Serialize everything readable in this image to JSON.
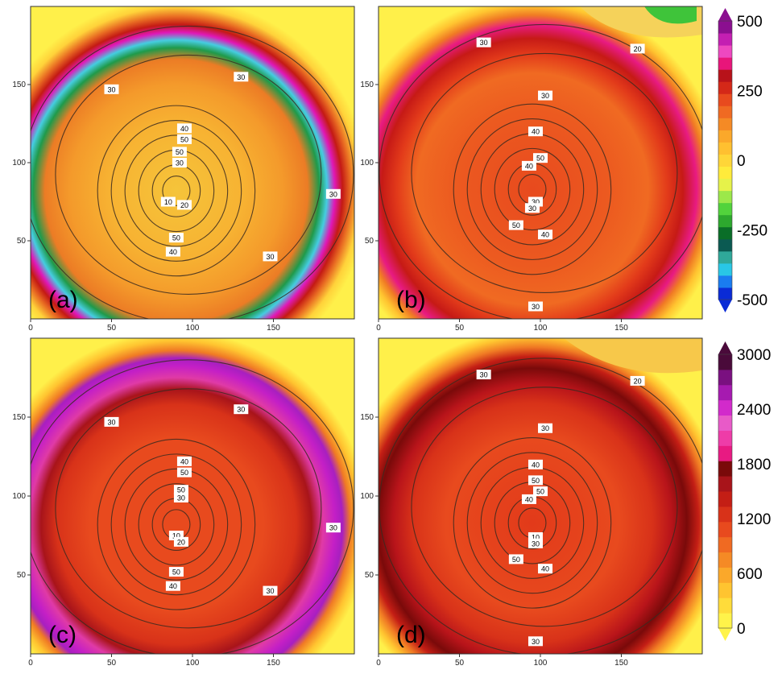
{
  "chart_data": [
    {
      "type": "heatmap",
      "panel_label": "(a)",
      "x_ticks": [
        "0",
        "50",
        "100",
        "150"
      ],
      "y_ticks": [
        "50",
        "100",
        "150"
      ],
      "xlim": [
        0,
        200
      ],
      "ylim": [
        0,
        200
      ],
      "center": [
        90,
        82
      ],
      "field": "diverging",
      "contours": [
        {
          "label": "10",
          "x": 85,
          "y": 75
        },
        {
          "label": "20",
          "x": 95,
          "y": 73
        },
        {
          "label": "30",
          "x": 130,
          "y": 155
        },
        {
          "label": "30",
          "x": 50,
          "y": 147
        },
        {
          "label": "30",
          "x": 187,
          "y": 80
        },
        {
          "label": "30",
          "x": 148,
          "y": 40
        },
        {
          "label": "30",
          "x": 92,
          "y": 100
        },
        {
          "label": "40",
          "x": 95,
          "y": 122
        },
        {
          "label": "40",
          "x": 88,
          "y": 43
        },
        {
          "label": "50",
          "x": 95,
          "y": 115
        },
        {
          "label": "50",
          "x": 92,
          "y": 107
        },
        {
          "label": "50",
          "x": 90,
          "y": 52
        }
      ]
    },
    {
      "type": "heatmap",
      "panel_label": "(b)",
      "x_ticks": [
        "0",
        "50",
        "100",
        "150"
      ],
      "y_ticks": [
        "50",
        "100",
        "150"
      ],
      "xlim": [
        0,
        200
      ],
      "ylim": [
        0,
        200
      ],
      "center": [
        95,
        83
      ],
      "field": "warm",
      "contours": [
        {
          "label": "30",
          "x": 65,
          "y": 177
        },
        {
          "label": "20",
          "x": 160,
          "y": 173
        },
        {
          "label": "30",
          "x": 103,
          "y": 143
        },
        {
          "label": "40",
          "x": 97,
          "y": 120
        },
        {
          "label": "50",
          "x": 100,
          "y": 103
        },
        {
          "label": "40",
          "x": 93,
          "y": 98
        },
        {
          "label": "30",
          "x": 97,
          "y": 75
        },
        {
          "label": "30",
          "x": 95,
          "y": 71
        },
        {
          "label": "50",
          "x": 85,
          "y": 60
        },
        {
          "label": "40",
          "x": 103,
          "y": 54
        },
        {
          "label": "30",
          "x": 97,
          "y": 8
        }
      ]
    },
    {
      "type": "heatmap",
      "panel_label": "(c)",
      "x_ticks": [
        "0",
        "50",
        "100",
        "150"
      ],
      "y_ticks": [
        "50",
        "100",
        "150"
      ],
      "xlim": [
        0,
        200
      ],
      "ylim": [
        0,
        200
      ],
      "center": [
        90,
        82
      ],
      "field": "sequential",
      "contours": [
        {
          "label": "30",
          "x": 130,
          "y": 155
        },
        {
          "label": "30",
          "x": 50,
          "y": 147
        },
        {
          "label": "40",
          "x": 95,
          "y": 122
        },
        {
          "label": "50",
          "x": 95,
          "y": 115
        },
        {
          "label": "50",
          "x": 93,
          "y": 104
        },
        {
          "label": "30",
          "x": 93,
          "y": 99
        },
        {
          "label": "10",
          "x": 90,
          "y": 75
        },
        {
          "label": "20",
          "x": 93,
          "y": 71
        },
        {
          "label": "30",
          "x": 187,
          "y": 80
        },
        {
          "label": "30",
          "x": 148,
          "y": 40
        },
        {
          "label": "50",
          "x": 90,
          "y": 52
        },
        {
          "label": "40",
          "x": 88,
          "y": 43
        }
      ]
    },
    {
      "type": "heatmap",
      "panel_label": "(d)",
      "x_ticks": [
        "0",
        "50",
        "100",
        "150"
      ],
      "y_ticks": [
        "50",
        "100",
        "150"
      ],
      "xlim": [
        0,
        200
      ],
      "ylim": [
        0,
        200
      ],
      "center": [
        95,
        83
      ],
      "field": "sequential_d",
      "contours": [
        {
          "label": "30",
          "x": 65,
          "y": 177
        },
        {
          "label": "20",
          "x": 160,
          "y": 173
        },
        {
          "label": "30",
          "x": 103,
          "y": 143
        },
        {
          "label": "40",
          "x": 97,
          "y": 120
        },
        {
          "label": "50",
          "x": 97,
          "y": 110
        },
        {
          "label": "50",
          "x": 100,
          "y": 103
        },
        {
          "label": "40",
          "x": 93,
          "y": 98
        },
        {
          "label": "10",
          "x": 97,
          "y": 74
        },
        {
          "label": "30",
          "x": 97,
          "y": 70
        },
        {
          "label": "50",
          "x": 85,
          "y": 60
        },
        {
          "label": "40",
          "x": 103,
          "y": 54
        },
        {
          "label": "30",
          "x": 97,
          "y": 8
        }
      ]
    }
  ],
  "colorbars": [
    {
      "labels": [
        "500",
        "250",
        "0",
        "-250",
        "-500"
      ],
      "values": [
        500,
        250,
        0,
        -250,
        -500
      ],
      "range": [
        -500,
        500
      ],
      "colors": [
        "#0a2bd6",
        "#1a7cf0",
        "#29c7e6",
        "#2fa89a",
        "#0b5a52",
        "#0a6e28",
        "#2da82e",
        "#52d33c",
        "#9ce84a",
        "#e6f24a",
        "#ffeb3b",
        "#ffd638",
        "#ffc030",
        "#fba82a",
        "#f58a25",
        "#f06a22",
        "#e84a1e",
        "#d42818",
        "#b8121a",
        "#e8157a",
        "#ee48c0",
        "#c41fb2",
        "#8b0f90"
      ]
    },
    {
      "labels": [
        "3000",
        "2400",
        "1800",
        "1200",
        "600",
        "0"
      ],
      "values": [
        3000,
        2400,
        1800,
        1200,
        600,
        0
      ],
      "range": [
        0,
        3000
      ],
      "colors": [
        "#fff34a",
        "#ffdc3a",
        "#ffc430",
        "#fba82a",
        "#f58a25",
        "#f06a22",
        "#e84a1e",
        "#d83219",
        "#c41e15",
        "#a8141a",
        "#7a0a0a",
        "#e81a82",
        "#ee3ca8",
        "#e85ac8",
        "#d22acb",
        "#a61ab0",
        "#7a1080",
        "#4a0a3a"
      ]
    }
  ]
}
